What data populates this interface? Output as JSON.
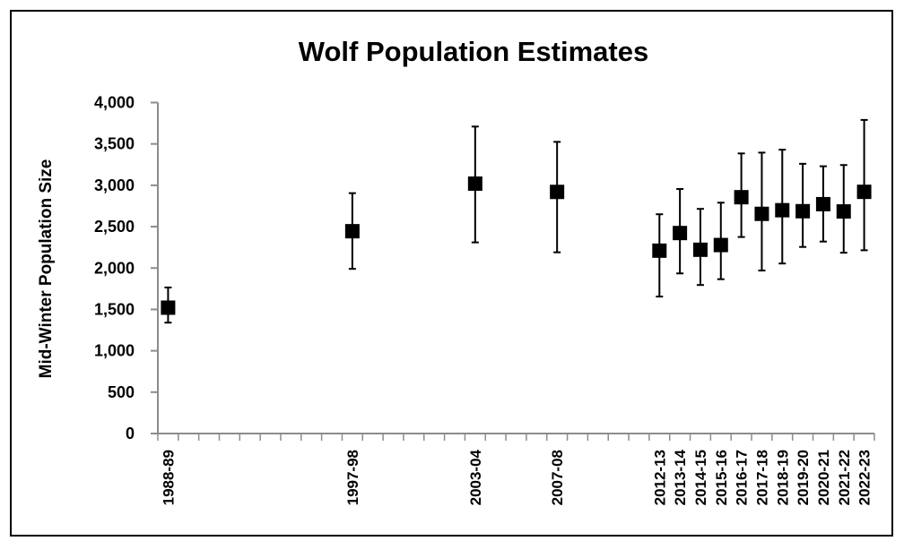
{
  "chart_data": {
    "type": "scatter",
    "title": "Wolf Population Estimates",
    "xlabel": "",
    "ylabel": "Mid-Winter Population Size",
    "ylim": [
      0,
      4000
    ],
    "yticks": [
      "0",
      "500",
      "1,000",
      "1,500",
      "2,000",
      "2,500",
      "3,000",
      "3,500",
      "4,000"
    ],
    "ytick_values": [
      0,
      500,
      1000,
      1500,
      2000,
      2500,
      3000,
      3500,
      4000
    ],
    "x_axis_range": [
      "1988-89",
      "2022-23"
    ],
    "grid": false,
    "legend": "none",
    "marker": "square",
    "marker_color": "#000000",
    "error_bars": true,
    "categories": [
      "1988-89",
      "1997-98",
      "2003-04",
      "2007-08",
      "2012-13",
      "2013-14",
      "2014-15",
      "2015-16",
      "2016-17",
      "2017-18",
      "2018-19",
      "2019-20",
      "2020-21",
      "2021-22",
      "2022-23"
    ],
    "values": [
      1521,
      2445,
      3020,
      2920,
      2210,
      2423,
      2221,
      2278,
      2856,
      2655,
      2699,
      2687,
      2772,
      2684,
      2921
    ],
    "lower": [
      1340,
      1990,
      2310,
      2190,
      1655,
      1935,
      1795,
      1865,
      2375,
      1970,
      2055,
      2255,
      2320,
      2185,
      2215
    ],
    "upper": [
      1765,
      2905,
      3710,
      3525,
      2650,
      2955,
      2715,
      2790,
      3385,
      3395,
      3430,
      3260,
      3230,
      3245,
      3790
    ]
  }
}
